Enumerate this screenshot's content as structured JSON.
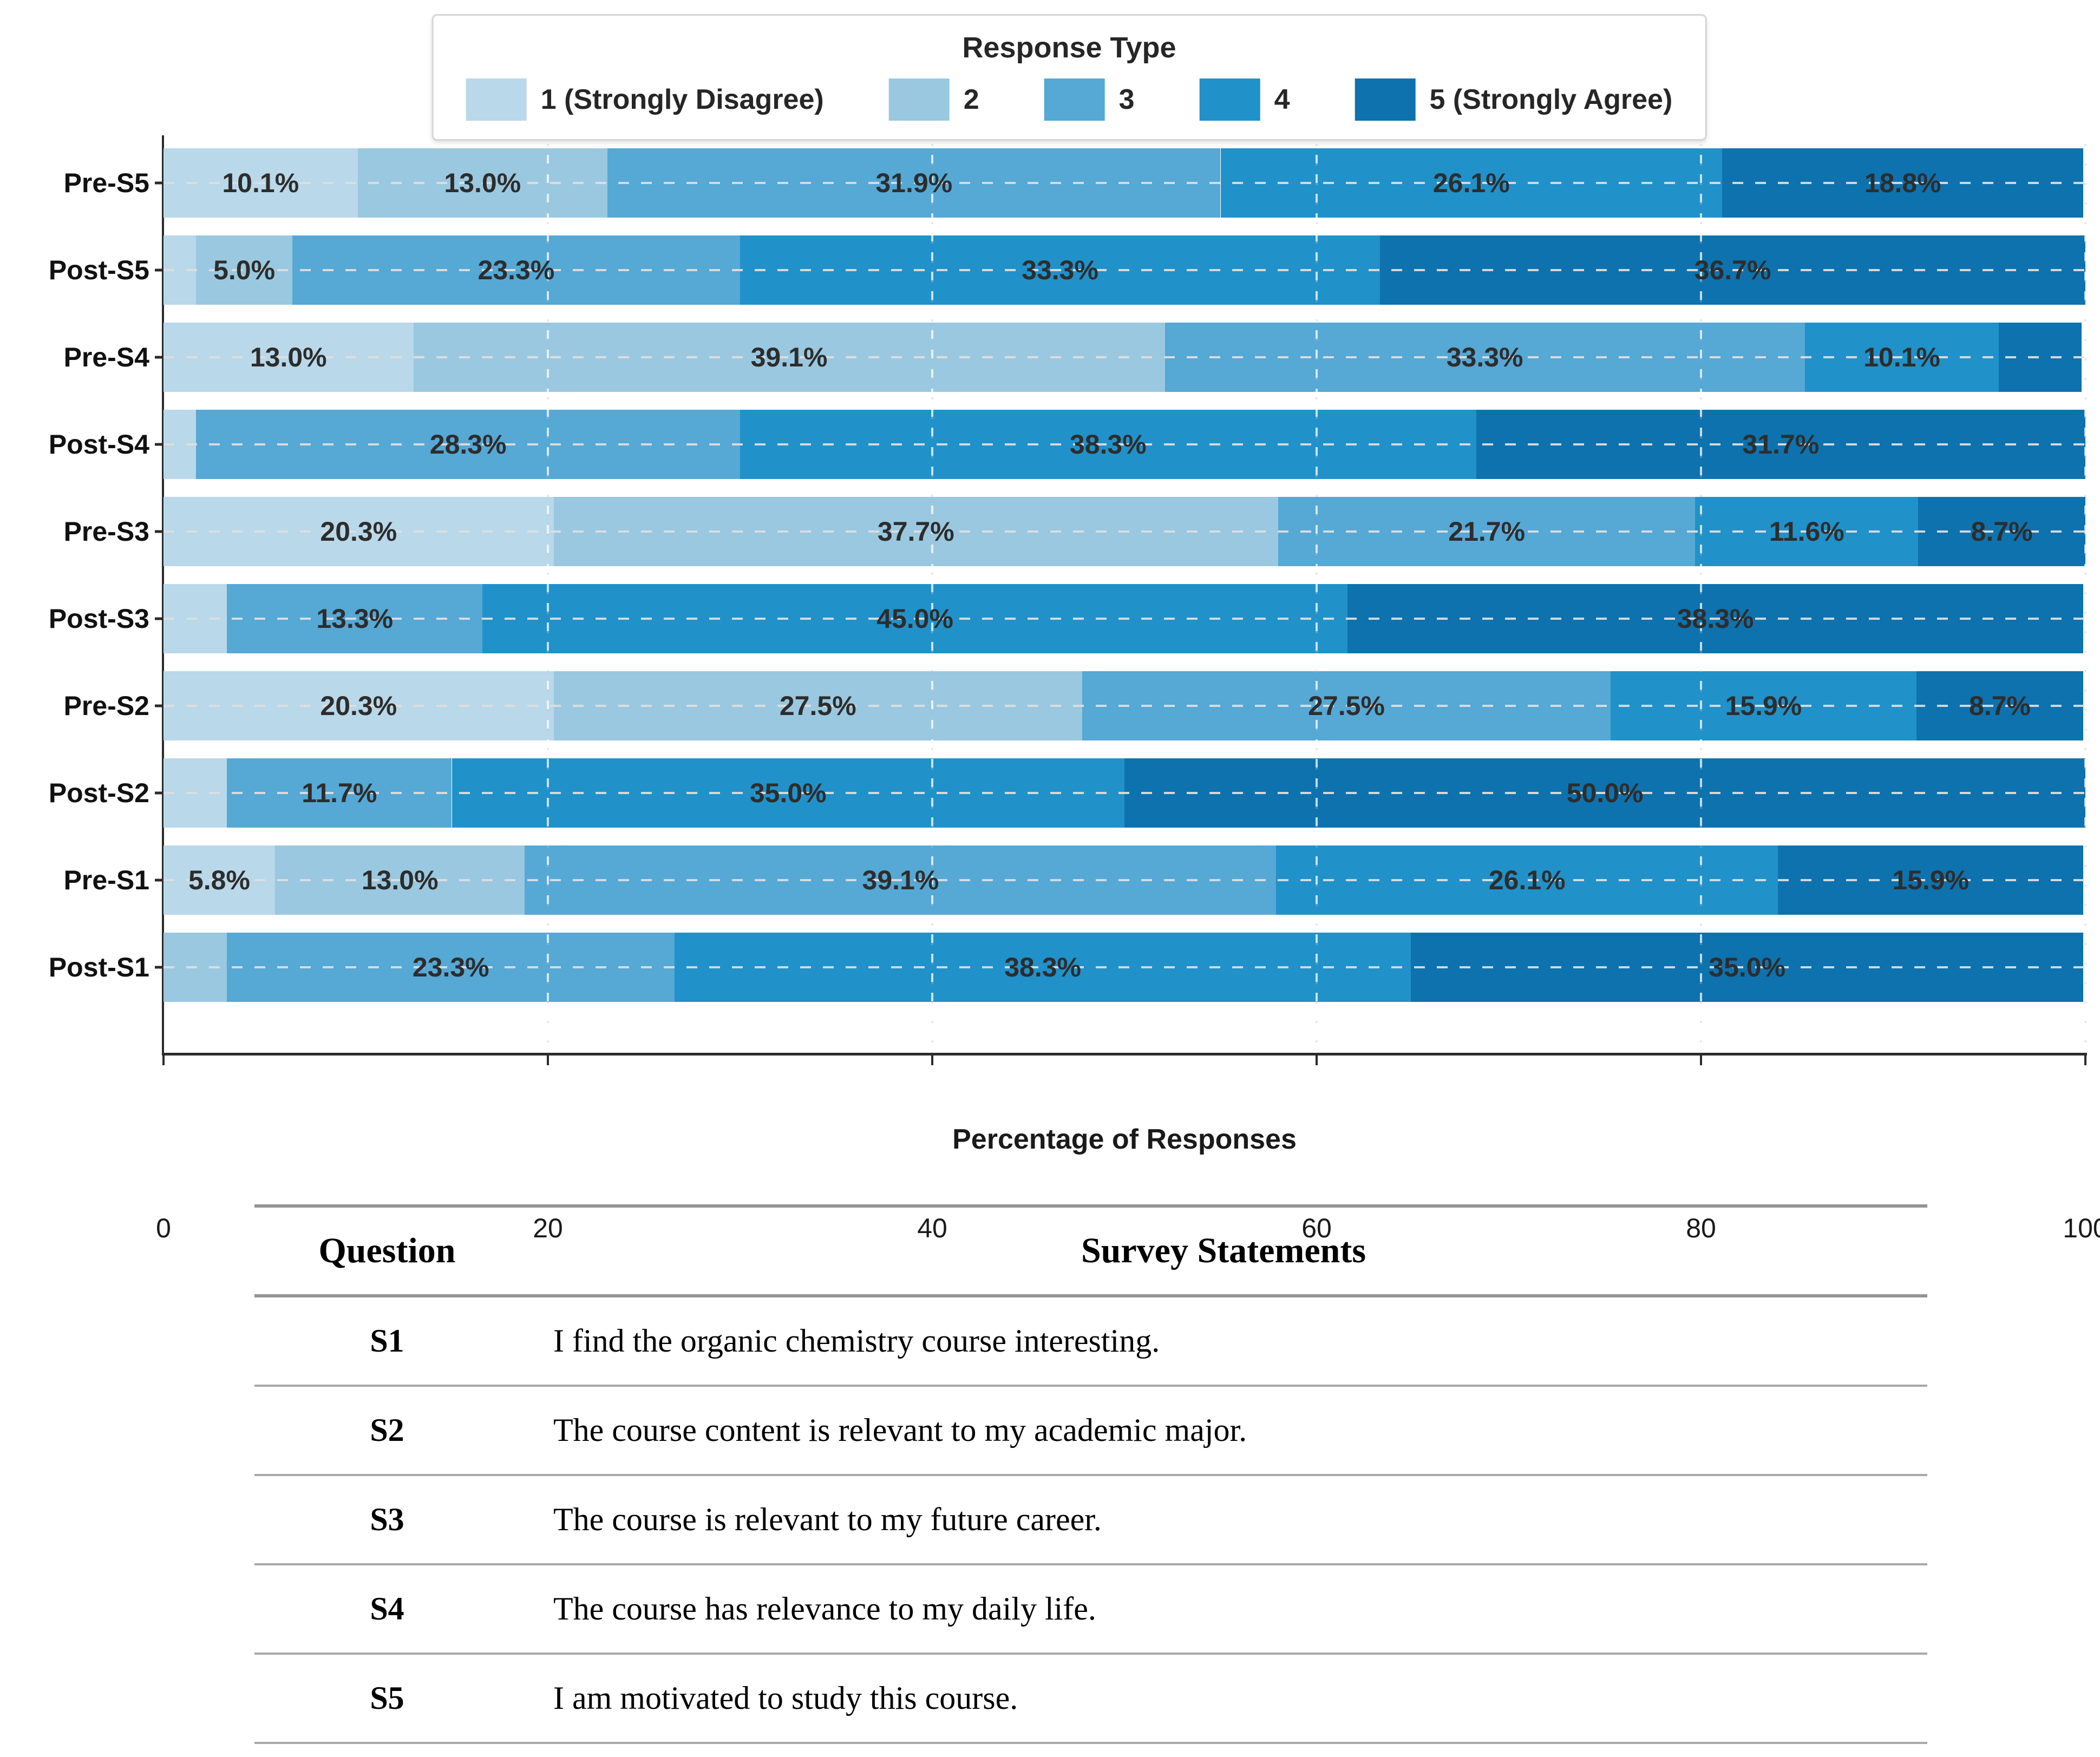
{
  "chart_data": {
    "type": "bar",
    "orientation": "horizontal_stacked",
    "xlabel": "Percentage of Responses",
    "xlim": [
      0,
      100
    ],
    "x_ticks": [
      0,
      20,
      40,
      60,
      80,
      100
    ],
    "grid": "dashed",
    "legend": {
      "title": "Response Type",
      "position": "top-center",
      "entries": [
        {
          "label": "1 (Strongly Disagree)",
          "color": "#b9d8ea"
        },
        {
          "label": "2",
          "color": "#9ac8e0"
        },
        {
          "label": "3",
          "color": "#56a8d5"
        },
        {
          "label": "4",
          "color": "#2191c9"
        },
        {
          "label": "5 (Strongly Agree)",
          "color": "#0e72ae"
        }
      ]
    },
    "label_min_value_shown": 5.0,
    "rows": [
      {
        "label": "Pre-S5",
        "values": [
          10.1,
          13.0,
          31.9,
          26.1,
          18.8
        ]
      },
      {
        "label": "Post-S5",
        "values": [
          1.7,
          5.0,
          23.3,
          33.3,
          36.7
        ]
      },
      {
        "label": "Pre-S4",
        "values": [
          13.0,
          39.1,
          33.3,
          10.1,
          4.3
        ]
      },
      {
        "label": "Post-S4",
        "values": [
          1.7,
          0,
          28.3,
          38.3,
          31.7
        ]
      },
      {
        "label": "Pre-S3",
        "values": [
          20.3,
          37.7,
          21.7,
          11.6,
          8.7
        ]
      },
      {
        "label": "Post-S3",
        "values": [
          3.3,
          0,
          13.3,
          45.0,
          38.3
        ]
      },
      {
        "label": "Pre-S2",
        "values": [
          20.3,
          27.5,
          27.5,
          15.9,
          8.7
        ]
      },
      {
        "label": "Post-S2",
        "values": [
          3.3,
          0,
          11.7,
          35.0,
          50.0
        ]
      },
      {
        "label": "Pre-S1",
        "values": [
          5.8,
          13.0,
          39.1,
          26.1,
          15.9
        ]
      },
      {
        "label": "Post-S1",
        "values": [
          0,
          3.3,
          23.3,
          38.3,
          35.0
        ]
      }
    ]
  },
  "table": {
    "headers": [
      "Question",
      "Survey Statements"
    ],
    "rows": [
      {
        "code": "S1",
        "statement": "I find the organic chemistry course interesting."
      },
      {
        "code": "S2",
        "statement": "The course content is relevant to my academic major."
      },
      {
        "code": "S3",
        "statement": "The course is relevant to my future career."
      },
      {
        "code": "S4",
        "statement": "The course has relevance to my daily life."
      },
      {
        "code": "S5",
        "statement": "I am motivated to study this course."
      }
    ]
  }
}
